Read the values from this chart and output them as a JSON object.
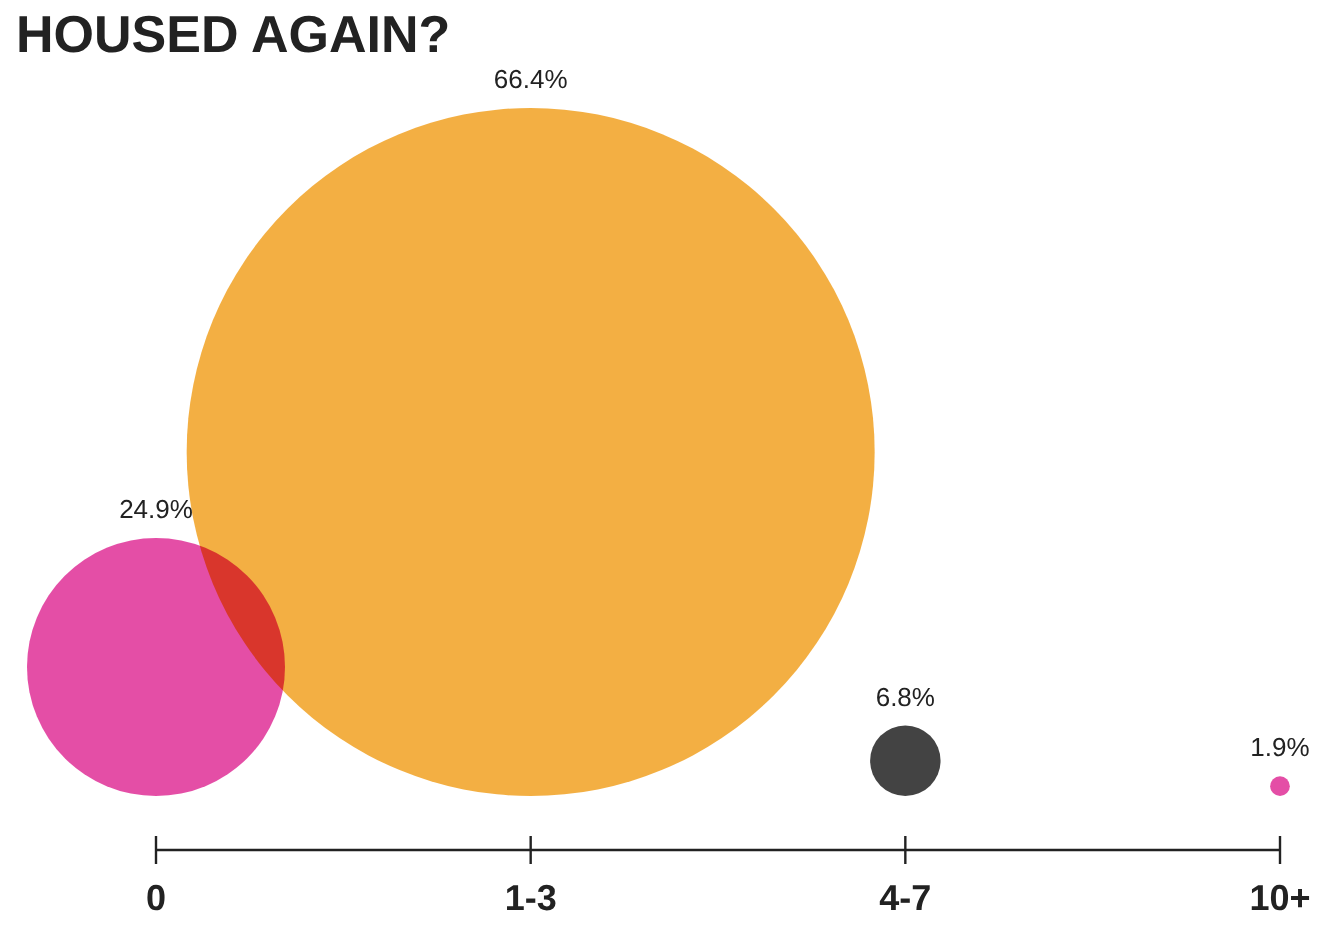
{
  "chart_data": {
    "type": "other",
    "title": "HOUSED AGAIN?",
    "categories": [
      "0",
      "1-3",
      "4-7",
      "10+"
    ],
    "values": [
      24.9,
      66.4,
      6.8,
      1.9
    ],
    "colors": [
      "#e23f9e",
      "#f2a833",
      "#333333",
      "#e23f9e"
    ],
    "value_labels": [
      "24.9%",
      "66.4%",
      "6.8%",
      "1.9%"
    ]
  }
}
